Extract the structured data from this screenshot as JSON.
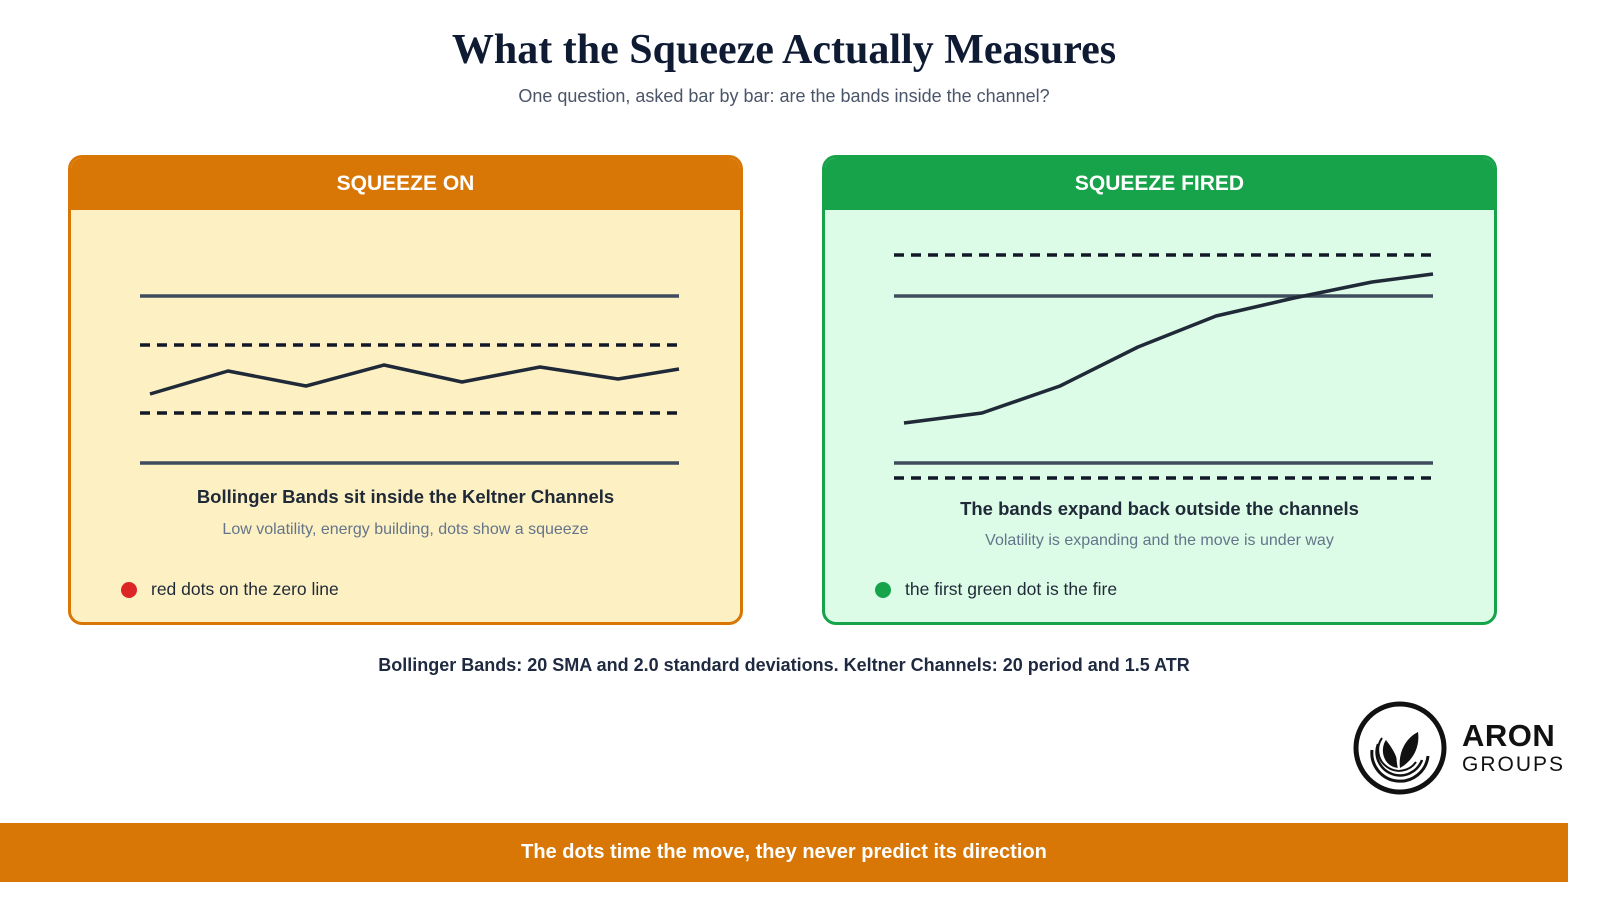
{
  "header": {
    "title": "What the Squeeze Actually Measures",
    "subtitle": "One question, asked bar by bar: are the bands inside the channel?"
  },
  "panels": [
    {
      "title": "SQUEEZE ON",
      "caption": "Bollinger Bands sit inside the Keltner Channels",
      "subcaption": "Low volatility, energy building, dots show a squeeze",
      "legend": "red dots on the zero line",
      "dot_color": "#dc2626",
      "accent": "#d97706"
    },
    {
      "title": "SQUEEZE FIRED",
      "caption": "The bands expand back outside the channels",
      "subcaption": "Volatility is expanding and the move is under way",
      "legend": "the first green dot is the fire",
      "dot_color": "#16a34a",
      "accent": "#16a34a"
    }
  ],
  "params_note": "Bollinger Bands: 20 SMA and 2.0 standard deviations. Keltner Channels: 20 period and 1.5 ATR",
  "logo": {
    "name": "ARON",
    "sub": "GROUPS"
  },
  "footer": "The dots time the move, they never predict its direction"
}
